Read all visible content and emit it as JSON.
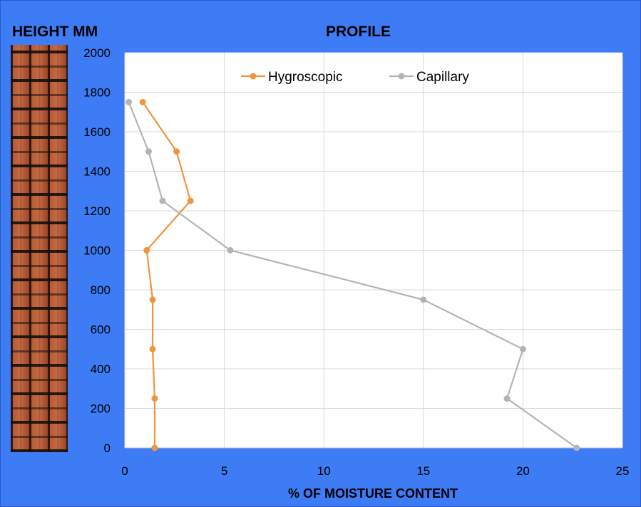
{
  "left_title": "HEIGHT MM",
  "chart_data": {
    "type": "line",
    "title": "PROFILE",
    "xlabel": "% OF MOISTURE CONTENT",
    "ylabel": "",
    "xlim": [
      0,
      25
    ],
    "ylim": [
      0,
      2000
    ],
    "x_ticks": [
      "0",
      "5",
      "10",
      "15",
      "20",
      "25"
    ],
    "y_ticks": [
      "0",
      "200",
      "400",
      "600",
      "800",
      "1000",
      "1200",
      "1400",
      "1600",
      "1800",
      "2000"
    ],
    "grid": true,
    "legend_position": "top",
    "series": [
      {
        "name": "Hygroscopic",
        "color": "#f0943e",
        "points": [
          {
            "x": 1.5,
            "y": 0
          },
          {
            "x": 1.5,
            "y": 250
          },
          {
            "x": 1.4,
            "y": 500
          },
          {
            "x": 1.4,
            "y": 750
          },
          {
            "x": 1.1,
            "y": 1000
          },
          {
            "x": 3.3,
            "y": 1250
          },
          {
            "x": 2.6,
            "y": 1500
          },
          {
            "x": 0.9,
            "y": 1750
          }
        ]
      },
      {
        "name": "Capillary",
        "color": "#b4b4b4",
        "points": [
          {
            "x": 22.7,
            "y": 0
          },
          {
            "x": 19.2,
            "y": 250
          },
          {
            "x": 20.0,
            "y": 500
          },
          {
            "x": 15.0,
            "y": 750
          },
          {
            "x": 5.3,
            "y": 1000
          },
          {
            "x": 1.9,
            "y": 1250
          },
          {
            "x": 1.2,
            "y": 1500
          },
          {
            "x": 0.2,
            "y": 1750
          }
        ]
      }
    ]
  }
}
